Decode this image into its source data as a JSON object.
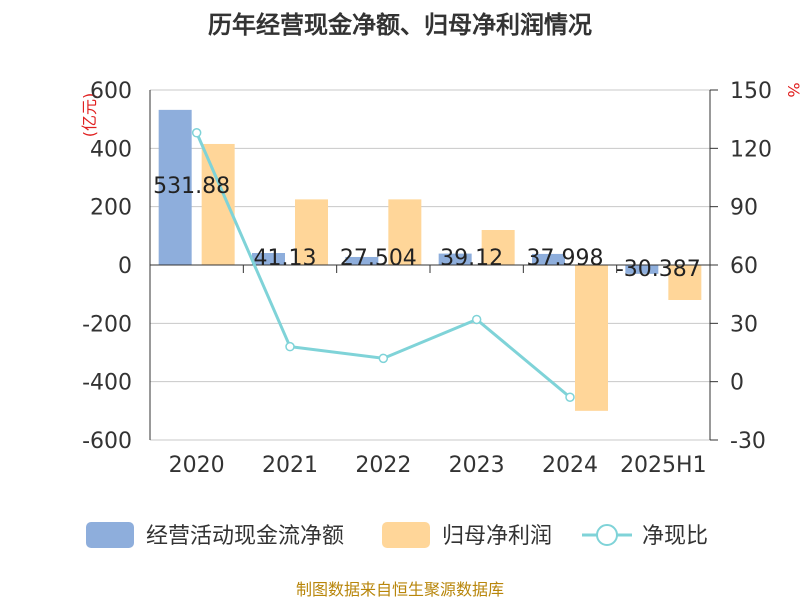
{
  "title": "历年经营现金净额、归母净利润情况",
  "source": "制图数据来自恒生聚源数据库",
  "chart_data": {
    "type": "bar",
    "categories": [
      "2020",
      "2021",
      "2022",
      "2023",
      "2024",
      "2025H1"
    ],
    "left_axis": {
      "unit": "(亿元)",
      "ticks": [
        600,
        400,
        200,
        0,
        -200,
        -400,
        -600
      ],
      "ylim": [
        -600,
        600
      ]
    },
    "right_axis": {
      "unit": "%",
      "ticks": [
        150,
        120,
        90,
        60,
        30,
        0,
        -30
      ],
      "ylim": [
        -30,
        150
      ]
    },
    "series": [
      {
        "name": "经营活动现金流净额",
        "type": "bar",
        "axis": "left",
        "color": "#8eaedc",
        "values": [
          531.88,
          41.13,
          27.504,
          39.12,
          37.998,
          -30.387
        ],
        "labels": [
          "531.88",
          "41.13",
          "27.504",
          "39.12",
          "37.998",
          "-30.387"
        ]
      },
      {
        "name": "归母净利润",
        "type": "bar",
        "axis": "left",
        "color": "#ffd699",
        "values": [
          415,
          225,
          225,
          120,
          -500,
          -120
        ]
      },
      {
        "name": "净现比",
        "type": "line",
        "axis": "right",
        "color": "#7fd3d8",
        "values": [
          128,
          18,
          12,
          32,
          -8,
          null
        ]
      }
    ],
    "grid": true,
    "legend": "bottom"
  }
}
